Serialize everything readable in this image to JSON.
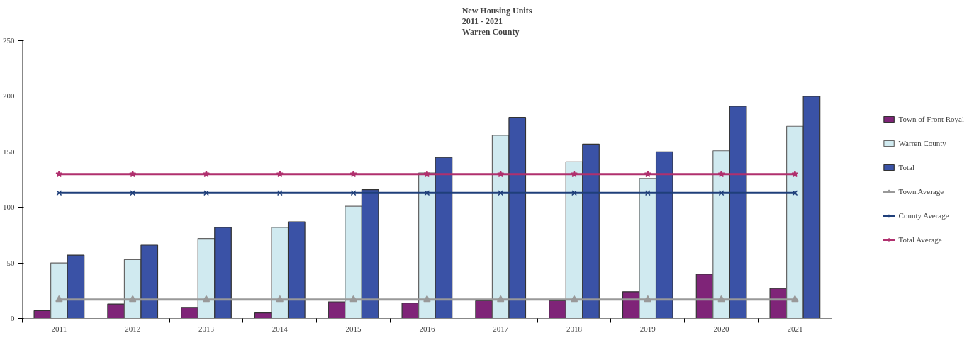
{
  "chart_data": {
    "type": "bar",
    "title": "New Housing Units\n2011 - 2021\nWarren County",
    "categories": [
      "2011",
      "2012",
      "2013",
      "2014",
      "2015",
      "2016",
      "2017",
      "2018",
      "2019",
      "2020",
      "2021"
    ],
    "series": [
      {
        "name": "Town of Front Royal",
        "color": "#7f2478",
        "values": [
          7,
          13,
          10,
          5,
          15,
          14,
          16,
          16,
          24,
          40,
          27
        ]
      },
      {
        "name": "Warren County",
        "color": "#d0eaf0",
        "values": [
          50,
          53,
          72,
          82,
          101,
          131,
          165,
          141,
          126,
          151,
          173
        ]
      },
      {
        "name": "Total",
        "color": "#3a52a6",
        "values": [
          57,
          66,
          82,
          87,
          116,
          145,
          181,
          157,
          150,
          191,
          200
        ]
      },
      {
        "name": "Town Average",
        "type": "line",
        "marker": "triangle",
        "color": "#999999",
        "values": [
          17,
          17,
          17,
          17,
          17,
          17,
          17,
          17,
          17,
          17,
          17
        ]
      },
      {
        "name": "County Average",
        "type": "line",
        "marker": "cross",
        "color": "#1f3f7a",
        "values": [
          113,
          113,
          113,
          113,
          113,
          113,
          113,
          113,
          113,
          113,
          113
        ]
      },
      {
        "name": "Total Average",
        "type": "line",
        "marker": "star",
        "color": "#b0306e",
        "values": [
          130,
          130,
          130,
          130,
          130,
          130,
          130,
          130,
          130,
          130,
          130
        ]
      }
    ],
    "ylim": [
      0,
      250
    ],
    "yticks": [
      0,
      50,
      100,
      150,
      200,
      250
    ],
    "legend": "right"
  }
}
